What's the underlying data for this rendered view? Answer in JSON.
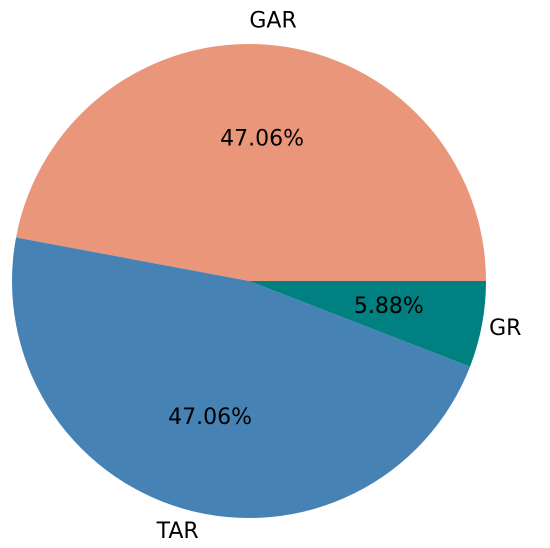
{
  "chart_data": {
    "type": "pie",
    "categories": [
      "GAR",
      "TAR",
      "GR"
    ],
    "values": [
      47.06,
      47.06,
      5.88
    ],
    "value_labels": [
      "47.06%",
      "47.06%",
      "5.88%"
    ],
    "colors": [
      "#e9967a",
      "#4682b4",
      "#008080"
    ]
  }
}
